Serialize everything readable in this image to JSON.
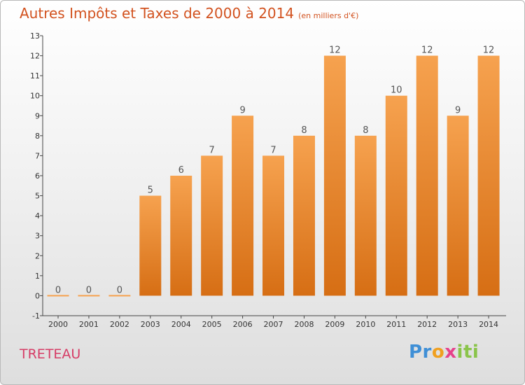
{
  "title": "Autres Impôts et Taxes de 2000 à 2014",
  "subtitle": "(en milliers d'€)",
  "commune": "TRETEAU",
  "logo": {
    "p1": "Pr",
    "p2": "o",
    "p3": "x",
    "p4": "iti"
  },
  "colors": {
    "title": "#d2521f",
    "commune": "#d63c66",
    "bar_top": "#f6a24f",
    "bar_bottom": "#d66e14"
  },
  "chart_data": {
    "type": "bar",
    "categories": [
      "2000",
      "2001",
      "2002",
      "2003",
      "2004",
      "2005",
      "2006",
      "2007",
      "2008",
      "2009",
      "2010",
      "2011",
      "2012",
      "2013",
      "2014"
    ],
    "values": [
      0,
      0,
      0,
      5,
      6,
      7,
      9,
      7,
      8,
      12,
      8,
      10,
      12,
      9,
      12
    ],
    "data_labels": [
      "0",
      "0",
      "0",
      "5",
      "6",
      "7",
      "9",
      "7",
      "8",
      "12",
      "8",
      "10",
      "12",
      "9",
      "12"
    ],
    "yticks": [
      "-1",
      "0",
      "1",
      "2",
      "3",
      "4",
      "5",
      "6",
      "7",
      "8",
      "9",
      "10",
      "11",
      "12",
      "13"
    ],
    "ylim": [
      -1,
      13
    ],
    "grid": false,
    "legend": "none"
  }
}
